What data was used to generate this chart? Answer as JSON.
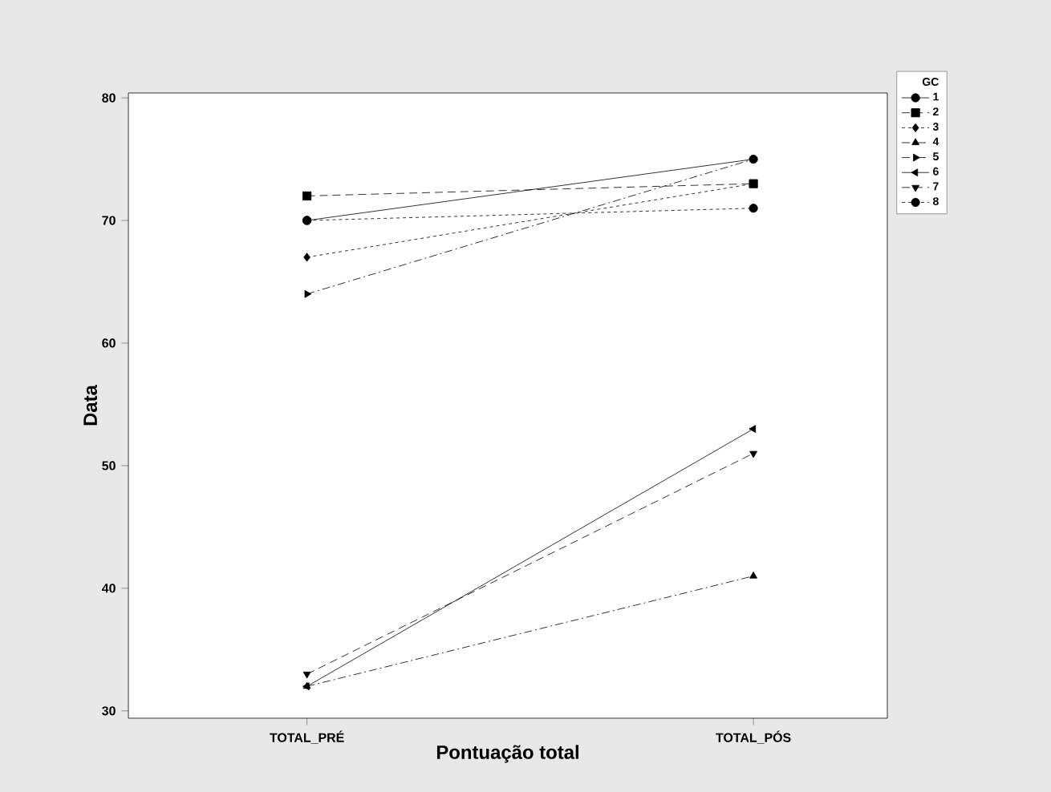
{
  "chart_data": {
    "type": "line",
    "xlabel": "Pontuação total",
    "ylabel": "Data",
    "categories": [
      "TOTAL_PRÉ",
      "TOTAL_PÓS"
    ],
    "ylim": [
      29.4,
      80.4
    ],
    "yticks": [
      30,
      40,
      50,
      60,
      70,
      80
    ],
    "legend": "right",
    "legend_title": "GC",
    "series": [
      {
        "name": "1",
        "color": "#000000",
        "values": [
          70,
          75
        ],
        "marker": "circle",
        "line_style": "solid"
      },
      {
        "name": "2",
        "color": "#000000",
        "values": [
          72,
          73
        ],
        "marker": "square",
        "line_style": "dashed"
      },
      {
        "name": "3",
        "color": "#000000",
        "values": [
          67,
          73
        ],
        "marker": "diamond",
        "line_style": "dotted"
      },
      {
        "name": "4",
        "color": "#000000",
        "values": [
          32,
          41
        ],
        "marker": "triangle",
        "line_style": "dashdotted"
      },
      {
        "name": "5",
        "color": "#000000",
        "values": [
          64,
          75
        ],
        "marker": "triangle-right",
        "line_style": "dashdotted"
      },
      {
        "name": "6",
        "color": "#000000",
        "values": [
          32,
          53
        ],
        "marker": "triangle-left",
        "line_style": "solid"
      },
      {
        "name": "7",
        "color": "#000000",
        "values": [
          33,
          51
        ],
        "marker": "triangle-down",
        "line_style": "dashed"
      },
      {
        "name": "8",
        "color": "#000000",
        "values": [
          70,
          71
        ],
        "marker": "circle",
        "line_style": "dotted"
      }
    ]
  }
}
